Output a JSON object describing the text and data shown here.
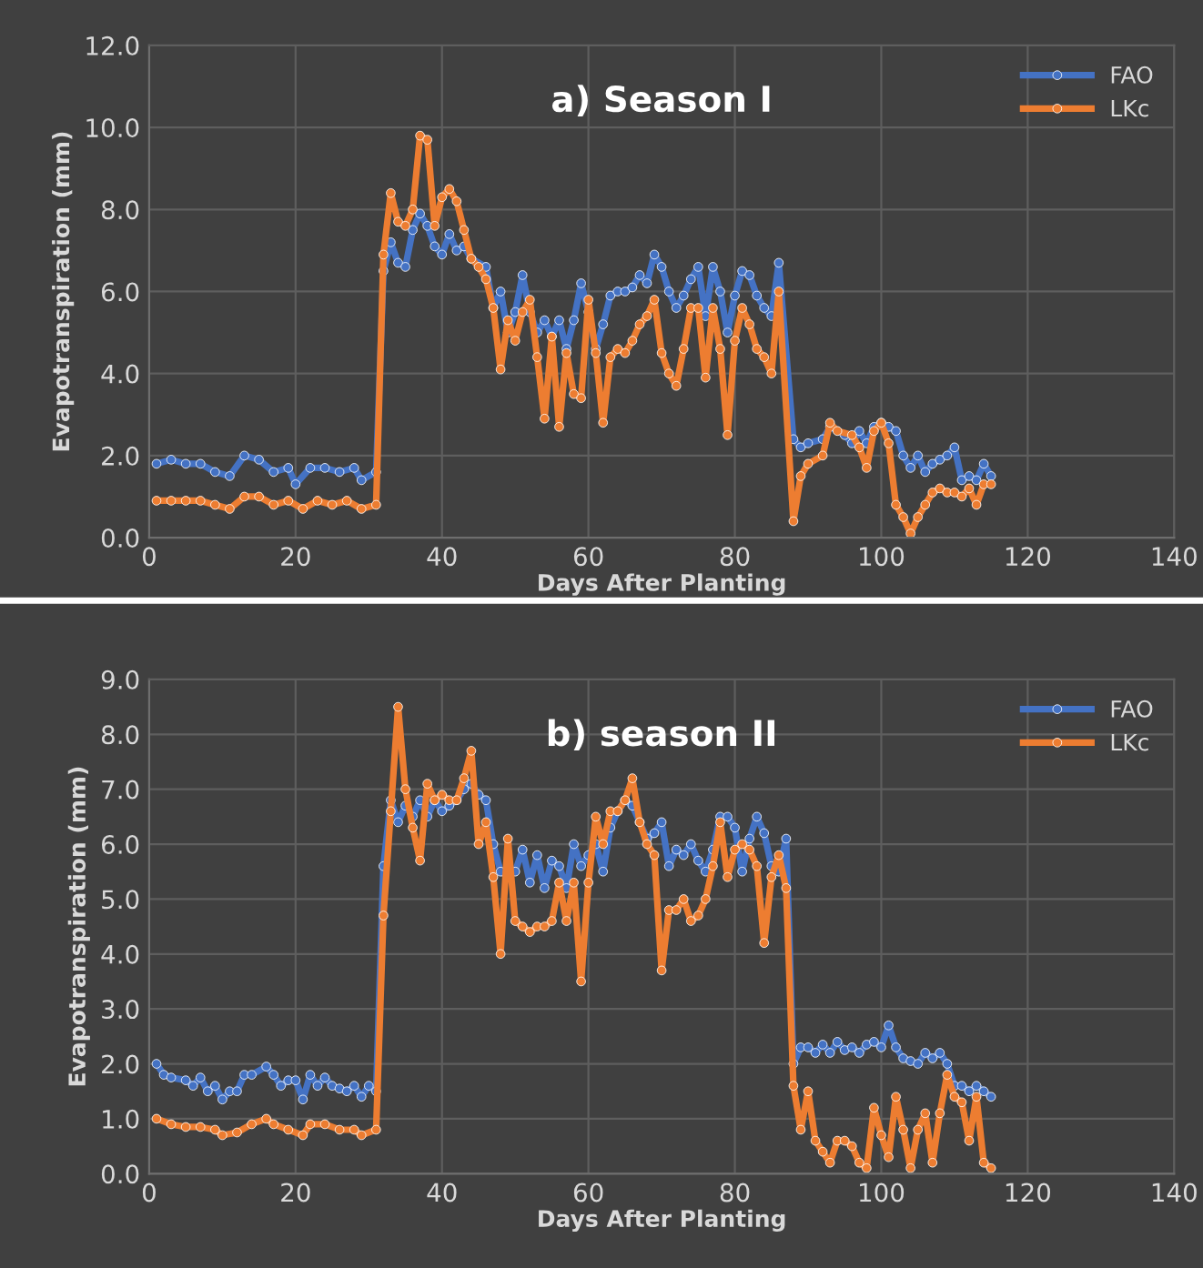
{
  "chart_data": [
    {
      "type": "line",
      "title": "a) Season I",
      "xlabel": "Days After Planting",
      "ylabel": "Evapotranspiration (mm)",
      "xlim": [
        0,
        140
      ],
      "xticks": [
        0,
        20,
        40,
        60,
        80,
        100,
        120,
        140
      ],
      "ylim": [
        0,
        12
      ],
      "yticks": [
        {
          "value": 0,
          "label": "0.0"
        },
        {
          "value": 2,
          "label": "2.0"
        },
        {
          "value": 4,
          "label": "4.0"
        },
        {
          "value": 6,
          "label": "6.0"
        },
        {
          "value": 8,
          "label": "8.0"
        },
        {
          "value": 10,
          "label": "10.0"
        },
        {
          "value": 12,
          "label": "12.0"
        }
      ],
      "grid": true,
      "legend": "top right",
      "marker": "circle",
      "line_style": "solid",
      "series": [
        {
          "name": "FAO",
          "color": "#4472c4",
          "x": [
            1,
            3,
            5,
            7,
            9,
            11,
            13,
            15,
            17,
            19,
            20,
            22,
            24,
            26,
            28,
            29,
            31,
            32,
            33,
            34,
            35,
            36,
            37,
            38,
            39,
            40,
            41,
            42,
            43,
            44,
            46,
            47,
            48,
            49,
            50,
            51,
            52,
            53,
            54,
            55,
            56,
            57,
            58,
            59,
            60,
            61,
            62,
            63,
            64,
            65,
            66,
            67,
            68,
            69,
            70,
            71,
            72,
            73,
            74,
            75,
            76,
            77,
            78,
            79,
            80,
            81,
            82,
            83,
            84,
            85,
            86,
            88,
            89,
            90,
            92,
            93,
            95,
            96,
            97,
            98,
            99,
            100,
            101,
            102,
            103,
            104,
            105,
            106,
            107,
            108,
            109,
            110,
            111,
            112,
            113,
            114,
            115
          ],
          "values": [
            1.8,
            1.9,
            1.8,
            1.8,
            1.6,
            1.5,
            2.0,
            1.9,
            1.6,
            1.7,
            1.3,
            1.7,
            1.7,
            1.6,
            1.7,
            1.4,
            1.6,
            6.5,
            7.2,
            6.7,
            6.6,
            7.5,
            7.9,
            7.6,
            7.1,
            6.9,
            7.4,
            7.0,
            7.1,
            6.8,
            6.6,
            5.6,
            6.0,
            5.0,
            5.5,
            6.4,
            5.5,
            5.0,
            5.3,
            4.9,
            5.3,
            4.6,
            5.3,
            6.2,
            5.5,
            4.6,
            5.2,
            5.9,
            6.0,
            6.0,
            6.1,
            6.4,
            6.2,
            6.9,
            6.6,
            6.0,
            5.6,
            5.9,
            6.3,
            6.6,
            5.4,
            6.6,
            6.0,
            5.0,
            5.9,
            6.5,
            6.4,
            5.9,
            5.6,
            5.4,
            6.7,
            2.4,
            2.2,
            2.3,
            2.4,
            2.7,
            2.5,
            2.3,
            2.6,
            2.3,
            2.7,
            2.8,
            2.7,
            2.6,
            2.0,
            1.7,
            2.0,
            1.6,
            1.8,
            1.9,
            2.0,
            2.2,
            1.4,
            1.5,
            1.4,
            1.8,
            1.5
          ]
        },
        {
          "name": "LKc",
          "color": "#ed7d31",
          "x": [
            1,
            3,
            5,
            7,
            9,
            11,
            13,
            15,
            17,
            19,
            21,
            23,
            25,
            27,
            29,
            31,
            32,
            33,
            34,
            35,
            36,
            37,
            38,
            39,
            40,
            41,
            42,
            43,
            44,
            45,
            46,
            47,
            48,
            49,
            50,
            51,
            52,
            53,
            54,
            55,
            56,
            57,
            58,
            59,
            60,
            61,
            62,
            63,
            64,
            65,
            66,
            67,
            68,
            69,
            70,
            71,
            72,
            73,
            74,
            75,
            76,
            77,
            78,
            79,
            80,
            81,
            82,
            83,
            84,
            85,
            86,
            88,
            89,
            90,
            92,
            93,
            94,
            96,
            97,
            98,
            99,
            100,
            101,
            102,
            103,
            104,
            105,
            106,
            107,
            108,
            109,
            110,
            111,
            112,
            113,
            114,
            115
          ],
          "values": [
            0.9,
            0.9,
            0.9,
            0.9,
            0.8,
            0.7,
            1.0,
            1.0,
            0.8,
            0.9,
            0.7,
            0.9,
            0.8,
            0.9,
            0.7,
            0.8,
            6.9,
            8.4,
            7.7,
            7.6,
            8.0,
            9.8,
            9.7,
            7.6,
            8.3,
            8.5,
            8.2,
            7.5,
            6.8,
            6.6,
            6.3,
            5.6,
            4.1,
            5.3,
            4.8,
            5.5,
            5.8,
            4.4,
            2.9,
            4.9,
            2.7,
            4.5,
            3.5,
            3.4,
            5.8,
            4.5,
            2.8,
            4.4,
            4.6,
            4.5,
            4.8,
            5.2,
            5.4,
            5.8,
            4.5,
            4.0,
            3.7,
            4.6,
            5.6,
            5.6,
            3.9,
            5.6,
            4.6,
            2.5,
            4.8,
            5.6,
            5.2,
            4.6,
            4.4,
            4.0,
            6.0,
            0.4,
            1.5,
            1.8,
            2.0,
            2.8,
            2.6,
            2.5,
            2.2,
            1.7,
            2.6,
            2.8,
            2.3,
            0.8,
            0.5,
            0.1,
            0.5,
            0.8,
            1.1,
            1.2,
            1.1,
            1.1,
            1.0,
            1.2,
            0.8,
            1.3,
            1.3
          ]
        }
      ]
    },
    {
      "type": "line",
      "title": "b) season II",
      "xlabel": "Days After Planting",
      "ylabel": "Evapotranspiration (mm)",
      "xlim": [
        0,
        140
      ],
      "xticks": [
        0,
        20,
        40,
        60,
        80,
        100,
        120,
        140
      ],
      "ylim": [
        0,
        9
      ],
      "yticks": [
        {
          "value": 0,
          "label": "0.0"
        },
        {
          "value": 1,
          "label": "1.0"
        },
        {
          "value": 2,
          "label": "2.0"
        },
        {
          "value": 3,
          "label": "3.0"
        },
        {
          "value": 4,
          "label": "4.0"
        },
        {
          "value": 5,
          "label": "5.0"
        },
        {
          "value": 6,
          "label": "6.0"
        },
        {
          "value": 7,
          "label": "7.0"
        },
        {
          "value": 8,
          "label": "8.0"
        },
        {
          "value": 9,
          "label": "9.0"
        }
      ],
      "grid": true,
      "legend": "top right",
      "marker": "circle",
      "line_style": "solid",
      "series": [
        {
          "name": "FAO",
          "color": "#4472c4",
          "x": [
            1,
            2,
            3,
            5,
            6,
            7,
            8,
            9,
            10,
            11,
            12,
            13,
            14,
            16,
            17,
            18,
            19,
            20,
            21,
            22,
            23,
            24,
            25,
            26,
            27,
            28,
            29,
            30,
            31,
            32,
            33,
            34,
            35,
            36,
            37,
            38,
            39,
            40,
            41,
            42,
            43,
            44,
            45,
            46,
            47,
            48,
            49,
            50,
            51,
            52,
            53,
            54,
            55,
            56,
            57,
            58,
            59,
            60,
            61,
            62,
            63,
            64,
            65,
            66,
            67,
            68,
            69,
            70,
            71,
            72,
            73,
            74,
            75,
            76,
            77,
            78,
            79,
            80,
            81,
            82,
            83,
            84,
            85,
            86,
            87,
            88,
            89,
            90,
            91,
            92,
            93,
            94,
            95,
            96,
            97,
            98,
            99,
            100,
            101,
            102,
            103,
            104,
            105,
            106,
            107,
            108,
            109,
            110,
            111,
            112,
            113,
            114,
            115
          ],
          "values": [
            2.0,
            1.8,
            1.75,
            1.7,
            1.6,
            1.75,
            1.5,
            1.6,
            1.35,
            1.5,
            1.5,
            1.8,
            1.8,
            1.95,
            1.8,
            1.6,
            1.7,
            1.7,
            1.35,
            1.8,
            1.6,
            1.75,
            1.6,
            1.55,
            1.5,
            1.6,
            1.4,
            1.6,
            1.5,
            5.6,
            6.8,
            6.4,
            6.7,
            6.5,
            6.8,
            6.5,
            6.8,
            6.6,
            6.7,
            6.8,
            7.0,
            7.1,
            6.9,
            6.8,
            6.0,
            5.5,
            5.4,
            5.5,
            5.9,
            5.3,
            5.8,
            5.2,
            5.7,
            5.6,
            5.2,
            6.0,
            5.6,
            5.8,
            6.0,
            5.5,
            6.3,
            6.6,
            6.8,
            6.7,
            6.4,
            6.1,
            6.2,
            6.4,
            5.6,
            5.9,
            5.8,
            6.0,
            5.7,
            5.5,
            5.9,
            6.5,
            6.5,
            6.3,
            5.5,
            6.1,
            6.5,
            6.2,
            5.6,
            5.5,
            6.1,
            2.0,
            2.3,
            2.3,
            2.2,
            2.35,
            2.2,
            2.4,
            2.25,
            2.3,
            2.2,
            2.35,
            2.4,
            2.3,
            2.7,
            2.3,
            2.1,
            2.05,
            2.0,
            2.2,
            2.1,
            2.2,
            2.0,
            1.6,
            1.6,
            1.5,
            1.6,
            1.5,
            1.4
          ]
        },
        {
          "name": "LKc",
          "color": "#ed7d31",
          "x": [
            1,
            3,
            5,
            7,
            9,
            10,
            12,
            14,
            16,
            17,
            19,
            21,
            22,
            24,
            26,
            28,
            29,
            31,
            32,
            33,
            34,
            35,
            36,
            37,
            38,
            39,
            40,
            41,
            42,
            43,
            44,
            45,
            46,
            47,
            48,
            49,
            50,
            51,
            52,
            53,
            54,
            55,
            56,
            57,
            58,
            59,
            60,
            61,
            62,
            63,
            64,
            65,
            66,
            67,
            68,
            69,
            70,
            71,
            72,
            73,
            74,
            75,
            76,
            77,
            78,
            79,
            80,
            81,
            82,
            83,
            84,
            85,
            86,
            87,
            88,
            89,
            90,
            91,
            92,
            93,
            94,
            95,
            96,
            97,
            98,
            99,
            100,
            101,
            102,
            103,
            104,
            105,
            106,
            107,
            108,
            109,
            110,
            111,
            112,
            113,
            114,
            115
          ],
          "values": [
            1.0,
            0.9,
            0.85,
            0.85,
            0.8,
            0.7,
            0.75,
            0.9,
            1.0,
            0.9,
            0.8,
            0.7,
            0.9,
            0.9,
            0.8,
            0.8,
            0.7,
            0.8,
            4.7,
            6.6,
            8.5,
            7.0,
            6.3,
            5.7,
            7.1,
            6.8,
            6.9,
            6.8,
            6.8,
            7.2,
            7.7,
            6.0,
            6.4,
            5.4,
            4.0,
            6.1,
            4.6,
            4.5,
            4.4,
            4.5,
            4.5,
            4.6,
            5.3,
            4.6,
            5.3,
            3.5,
            5.3,
            6.5,
            6.0,
            6.6,
            6.6,
            6.8,
            7.2,
            6.4,
            6.0,
            5.8,
            3.7,
            4.8,
            4.8,
            5.0,
            4.6,
            4.7,
            5.0,
            5.6,
            6.4,
            5.4,
            5.9,
            6.0,
            5.9,
            5.6,
            4.2,
            5.4,
            5.8,
            5.2,
            1.6,
            0.8,
            1.5,
            0.6,
            0.4,
            0.2,
            0.6,
            0.6,
            0.5,
            0.2,
            0.1,
            1.2,
            0.7,
            0.3,
            1.4,
            0.8,
            0.1,
            0.8,
            1.1,
            0.2,
            1.1,
            1.8,
            1.4,
            1.3,
            0.6,
            1.4,
            0.2,
            0.1
          ]
        }
      ]
    }
  ]
}
